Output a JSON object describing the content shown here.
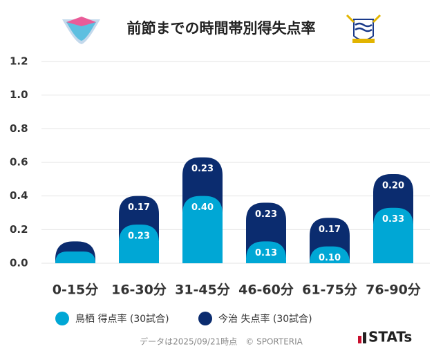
{
  "chart_data": {
    "type": "stacked-bar",
    "title": "前節までの時間帯別得失点率",
    "categories": [
      "0-15分",
      "16-30分",
      "31-45分",
      "46-60分",
      "61-75分",
      "76-90分"
    ],
    "series": [
      {
        "name": "鳥栖 得点率 (30試合)",
        "color": "#00a7d5",
        "values": [
          0.07,
          0.23,
          0.4,
          0.13,
          0.1,
          0.33
        ],
        "value_labels": [
          null,
          "0.23",
          "0.40",
          "0.13",
          "0.10",
          "0.33"
        ]
      },
      {
        "name": "今治 失点率 (30試合)",
        "color": "#0b2c6f",
        "values": [
          0.06,
          0.17,
          0.23,
          0.23,
          0.17,
          0.2
        ],
        "value_labels": [
          null,
          "0.17",
          "0.23",
          "0.23",
          "0.17",
          "0.20"
        ]
      }
    ],
    "ylim": [
      0,
      1.2
    ],
    "yticks": [
      {
        "value": 0,
        "label": "0.0"
      },
      0.2,
      0.4,
      0.6,
      0.8,
      {
        "value": 1,
        "label": "1.0"
      },
      1.2
    ],
    "grid": true
  },
  "footer": {
    "note": "データは2025/09/21時点　© SPORTERIA",
    "brand": "STATs"
  }
}
